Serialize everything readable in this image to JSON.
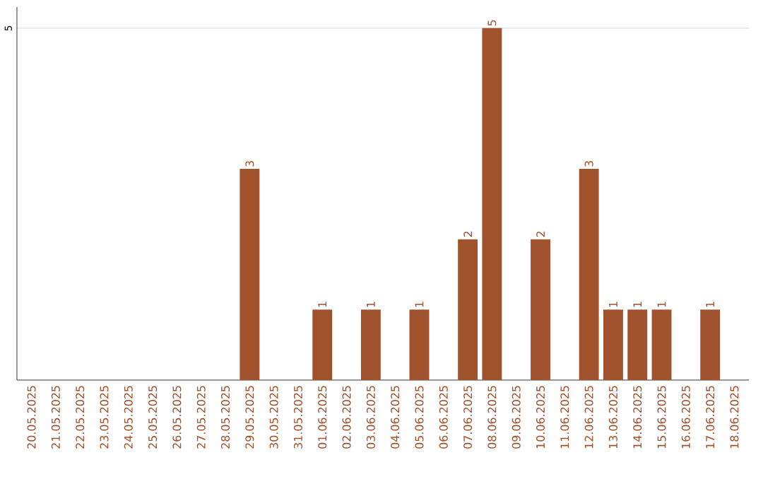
{
  "chart_data": {
    "type": "bar",
    "categories": [
      "20.05.2025",
      "21.05.2025",
      "22.05.2025",
      "23.05.2025",
      "24.05.2025",
      "25.05.2025",
      "26.05.2025",
      "27.05.2025",
      "28.05.2025",
      "29.05.2025",
      "30.05.2025",
      "31.05.2025",
      "01.06.2025",
      "02.06.2025",
      "03.06.2025",
      "04.06.2025",
      "05.06.2025",
      "06.06.2025",
      "07.06.2025",
      "08.06.2025",
      "09.06.2025",
      "10.06.2025",
      "11.06.2025",
      "12.06.2025",
      "13.06.2025",
      "14.06.2025",
      "15.06.2025",
      "16.06.2025",
      "17.06.2025",
      "18.06.2025"
    ],
    "values": [
      0,
      0,
      0,
      0,
      0,
      0,
      0,
      0,
      0,
      3,
      0,
      0,
      1,
      0,
      1,
      0,
      1,
      0,
      2,
      5,
      0,
      2,
      0,
      3,
      1,
      1,
      1,
      0,
      1,
      0
    ],
    "value_labels": [
      null,
      null,
      null,
      null,
      null,
      null,
      null,
      null,
      null,
      "3",
      null,
      null,
      "1",
      null,
      "1",
      null,
      "1",
      null,
      "2",
      "5",
      null,
      "2",
      null,
      "3",
      "1",
      "1",
      "1",
      null,
      "1",
      null
    ],
    "color": "#a0522d",
    "ylim": [
      0,
      5.3
    ],
    "yticks": [
      5
    ],
    "grid": "y"
  }
}
